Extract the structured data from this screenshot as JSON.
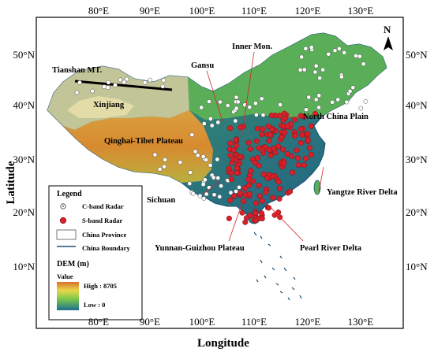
{
  "map": {
    "x_axis_label": "Longitude",
    "y_axis_label": "Latitude",
    "lon_ticks": [
      "80°E",
      "90°E",
      "100°E",
      "110°E",
      "120°E",
      "130°E"
    ],
    "lat_ticks": [
      "50°N",
      "40°N",
      "30°N",
      "20°N",
      "10°N"
    ],
    "north_arrow": "N",
    "colors": {
      "dem_low": "#2a7a8c",
      "dem_mid": "#7cc94a",
      "dem_high": "#d87a2c",
      "c_band": "#ffffff",
      "s_band": "#d8202a",
      "boundary": "#1a4f73"
    }
  },
  "places": [
    {
      "id": "tianshan",
      "label": "Tianshan MT."
    },
    {
      "id": "xinjiang",
      "label": "Xinjiang"
    },
    {
      "id": "gansu",
      "label": "Gansu"
    },
    {
      "id": "inner-mon",
      "label": "Inner Mon."
    },
    {
      "id": "north-china-plain",
      "label": "North China Plain"
    },
    {
      "id": "qinghai-tibet",
      "label": "Qinghai-Tibet Plateau"
    },
    {
      "id": "sichuan",
      "label": "Sichuan"
    },
    {
      "id": "yangtze",
      "label": "Yangtze River Delta"
    },
    {
      "id": "yunnan-guizhou",
      "label": "Yunnan-Guizhou Plateau"
    },
    {
      "id": "pearl",
      "label": "Pearl River Delta"
    }
  ],
  "legend": {
    "title": "Legend",
    "c_band": "C-band Radar",
    "s_band": "S-band Radar",
    "province": "China Province",
    "boundary": "China Boundary",
    "dem_title": "DEM (m)",
    "value_label": "Value",
    "high": "High : 8705",
    "low": "Low : 0"
  }
}
